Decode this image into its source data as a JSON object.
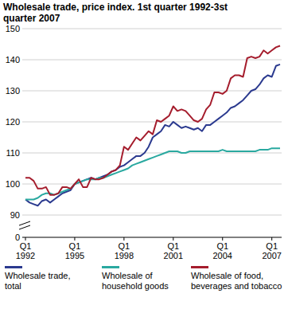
{
  "chart_data": {
    "type": "line",
    "title": "Wholesale trade, price index. 1st quarter 1992-3st quarter 2007",
    "categories": [
      "Q1 1992",
      null,
      null,
      null,
      null,
      null,
      null,
      null,
      null,
      null,
      null,
      null,
      "Q1 1995",
      null,
      null,
      null,
      null,
      null,
      null,
      null,
      null,
      null,
      null,
      null,
      "Q1 1998",
      null,
      null,
      null,
      null,
      null,
      null,
      null,
      null,
      null,
      null,
      null,
      "Q1 2001",
      null,
      null,
      null,
      null,
      null,
      null,
      null,
      null,
      null,
      null,
      null,
      "Q1 2004",
      null,
      null,
      null,
      null,
      null,
      null,
      null,
      null,
      null,
      null,
      null,
      "Q1 2007",
      null,
      null
    ],
    "series": [
      {
        "name": "Wholesale trade, total",
        "color": "#2b3a8f",
        "values": [
          95,
          94,
          93.5,
          93,
          94.5,
          95,
          94,
          95,
          96,
          97,
          97.5,
          98,
          100,
          100.5,
          101,
          101.5,
          102,
          101.5,
          102,
          102.5,
          103,
          104,
          104.5,
          105.5,
          106,
          107,
          108,
          109,
          109,
          110,
          112,
          115,
          116,
          117,
          119,
          118.5,
          120,
          119,
          118,
          118.5,
          118,
          117.5,
          118,
          117,
          119,
          119,
          120,
          121,
          122,
          123,
          124.5,
          125,
          126,
          127,
          128.5,
          130,
          130.5,
          132,
          134,
          135,
          134.5,
          138,
          138.5
        ]
      },
      {
        "name": "Wholesale of household goods",
        "color": "#2aa9a0",
        "values": [
          95,
          95,
          95,
          95.5,
          96.5,
          97,
          97,
          96.5,
          97,
          97.5,
          98,
          98.5,
          100,
          100.5,
          101,
          101.5,
          101.5,
          101.5,
          102,
          102,
          102.5,
          103,
          103.5,
          104,
          104.5,
          105,
          106,
          106.5,
          107,
          107.5,
          108,
          108.5,
          109,
          109.5,
          110,
          110.5,
          110.5,
          110.5,
          110,
          110,
          110.5,
          110.5,
          110.5,
          110.5,
          110.5,
          110.5,
          110.5,
          110.5,
          111,
          110.5,
          110.5,
          110.5,
          110.5,
          110.5,
          110.5,
          110.5,
          110.5,
          111,
          111,
          111,
          111.5,
          111.5,
          111.5
        ]
      },
      {
        "name": "Wholesale of food, beverages and tobacco",
        "color": "#a51d2d",
        "values": [
          102,
          102,
          101,
          98.5,
          98.5,
          99,
          96.5,
          96.5,
          97,
          99,
          99,
          98.5,
          100,
          101.5,
          99,
          99,
          102,
          101.5,
          101.5,
          102,
          103,
          104,
          104.5,
          106,
          112,
          111,
          113,
          115,
          114,
          115.5,
          117,
          116,
          120.5,
          120,
          121,
          122,
          125,
          123.5,
          124,
          123.5,
          122,
          120.5,
          120,
          121,
          124,
          125.5,
          129.5,
          129.5,
          129,
          130,
          134,
          135,
          135,
          134.5,
          140.5,
          141,
          140.5,
          141,
          143,
          142,
          143,
          144,
          144.5
        ]
      }
    ],
    "ylim": [
      0,
      150
    ],
    "yticks": [
      0,
      90,
      100,
      110,
      120,
      130,
      140,
      150
    ],
    "grid": true
  }
}
